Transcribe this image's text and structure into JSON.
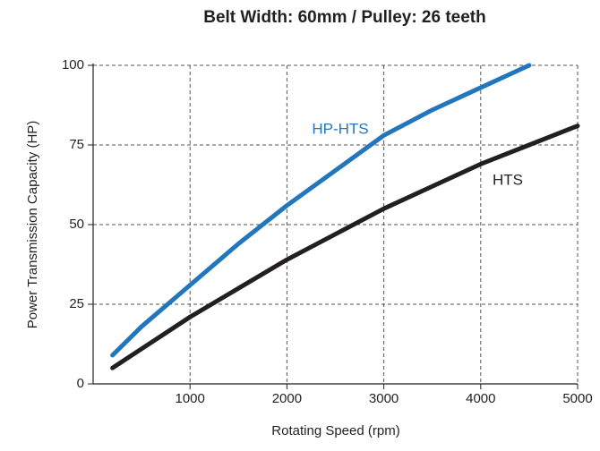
{
  "chart_data": {
    "type": "line",
    "title": "Belt Width: 60mm / Pulley: 26 teeth",
    "x_label": "Rotating Speed (rpm)",
    "y_label": "Power Transmission Capacity (HP)",
    "xlim": [
      0,
      5000
    ],
    "xticks": [
      1000,
      2000,
      3000,
      4000,
      5000
    ],
    "ylim": [
      0,
      100
    ],
    "yticks": [
      0,
      25,
      50,
      75,
      100
    ],
    "grid": true,
    "series": [
      {
        "name": "HP-HTS",
        "color": "#2176bc",
        "x": [
          200,
          500,
          1000,
          1500,
          2000,
          2500,
          3000,
          3500,
          4000,
          4500
        ],
        "values": [
          9,
          18,
          31,
          44,
          56,
          67,
          78,
          86,
          93,
          100
        ]
      },
      {
        "name": "HTS",
        "color": "#231f20",
        "x": [
          200,
          500,
          1000,
          1500,
          2000,
          2500,
          3000,
          3500,
          4000,
          4500,
          5000
        ],
        "values": [
          5,
          11,
          21,
          30,
          39,
          47,
          55,
          62,
          69,
          75,
          81
        ]
      }
    ]
  }
}
